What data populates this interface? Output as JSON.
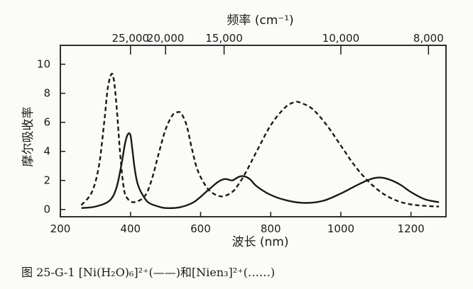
{
  "chart_data": {
    "type": "line",
    "xlabel": "波长 (nm)",
    "ylabel": "摩尔吸收率",
    "top_axis_label": "频率 (cm⁻¹)",
    "xlim": [
      200,
      1300
    ],
    "ylim": [
      -0.5,
      11.3
    ],
    "x_ticks": [
      200,
      400,
      600,
      800,
      1000,
      1200
    ],
    "y_ticks": [
      0,
      2,
      4,
      6,
      8,
      10
    ],
    "top_ticks": [
      {
        "label": "25,000",
        "wavelength": 400
      },
      {
        "label": "20,000",
        "wavelength": 500
      },
      {
        "label": "15,000",
        "wavelength": 667
      },
      {
        "label": "10,000",
        "wavelength": 1000
      },
      {
        "label": "8,000",
        "wavelength": 1250
      }
    ],
    "grid": false,
    "caption": "图 25-G-1  [Ni(H₂O)₆]²⁺(——)和[Nien₃]²⁺(……)",
    "series": [
      {
        "style": "solid",
        "color": "#1a1a1a",
        "x": [
          260,
          300,
          340,
          360,
          375,
          385,
          393,
          400,
          405,
          412,
          420,
          430,
          450,
          480,
          500,
          540,
          580,
          620,
          650,
          670,
          690,
          705,
          720,
          740,
          760,
          800,
          850,
          900,
          950,
          1000,
          1040,
          1080,
          1110,
          1140,
          1170,
          1200,
          1240,
          1280
        ],
        "y": [
          0.1,
          0.2,
          0.6,
          1.5,
          3.2,
          4.6,
          5.2,
          5.1,
          4.2,
          2.8,
          1.8,
          1.2,
          0.5,
          0.2,
          0.1,
          0.15,
          0.5,
          1.3,
          1.9,
          2.1,
          2.0,
          2.2,
          2.3,
          2.1,
          1.6,
          1.0,
          0.6,
          0.45,
          0.6,
          1.1,
          1.6,
          2.05,
          2.2,
          2.05,
          1.7,
          1.2,
          0.7,
          0.5
        ]
      },
      {
        "style": "dashed",
        "color": "#1a1a1a",
        "x": [
          260,
          290,
          310,
          325,
          335,
          345,
          352,
          360,
          370,
          380,
          390,
          410,
          440,
          460,
          480,
          500,
          520,
          535,
          545,
          560,
          575,
          590,
          610,
          630,
          660,
          690,
          710,
          730,
          760,
          800,
          840,
          870,
          890,
          920,
          960,
          1000,
          1040,
          1080,
          1120,
          1160,
          1200,
          1240,
          1280
        ],
        "y": [
          0.3,
          1.2,
          3.0,
          6.0,
          8.3,
          9.3,
          9.0,
          7.2,
          4.0,
          1.6,
          0.8,
          0.5,
          0.9,
          2.0,
          3.8,
          5.5,
          6.5,
          6.7,
          6.6,
          5.8,
          4.2,
          2.8,
          1.8,
          1.2,
          0.9,
          1.2,
          1.8,
          2.6,
          4.0,
          5.8,
          7.0,
          7.4,
          7.3,
          6.9,
          5.8,
          4.4,
          3.0,
          1.9,
          1.1,
          0.6,
          0.35,
          0.25,
          0.2
        ]
      }
    ]
  }
}
